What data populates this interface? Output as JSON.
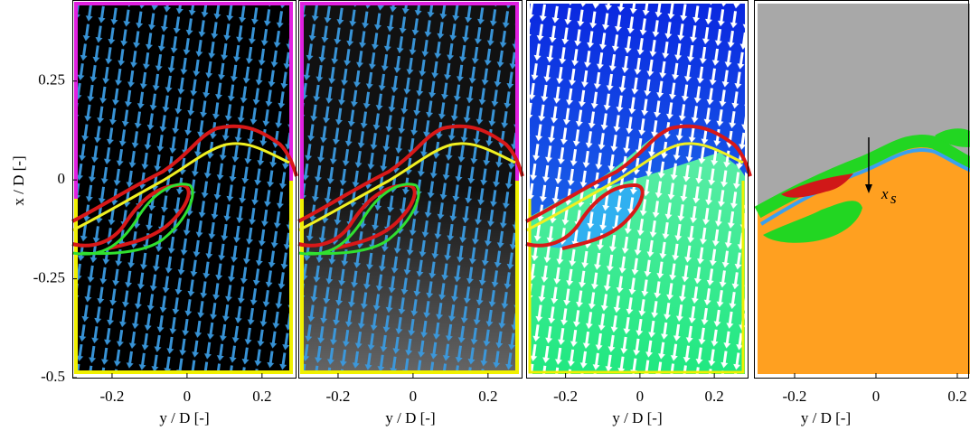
{
  "chart_data": [
    {
      "type": "image",
      "xlabel": "y / D [-]",
      "ylabel": "x / D [-]",
      "xlim": [
        -0.306,
        0.292
      ],
      "xticks": [
        -0.2,
        0,
        0.2
      ],
      "ylim": [
        -0.5,
        0.455
      ],
      "yticks": [
        -0.5,
        -0.25,
        0,
        0.25
      ]
    },
    {
      "type": "image",
      "xlabel": "y / D [-]",
      "xlim": [
        -0.306,
        0.292
      ],
      "xticks": [
        -0.2,
        0,
        0.2
      ],
      "ylim": [
        -0.5,
        0.455
      ]
    },
    {
      "type": "image",
      "xlabel": "y / D [-]",
      "xlim": [
        -0.306,
        0.292
      ],
      "xticks": [
        -0.2,
        0,
        0.2
      ],
      "ylim": [
        -0.5,
        0.455
      ]
    },
    {
      "type": "image",
      "xlabel": "y / D [-]",
      "xlim": [
        -0.3,
        0.269
      ],
      "xticks": [
        -0.2,
        0,
        0.2
      ],
      "ylim": [
        -0.5,
        0.455
      ],
      "annotation": "x",
      "annotation_subscript": "s"
    }
  ]
}
